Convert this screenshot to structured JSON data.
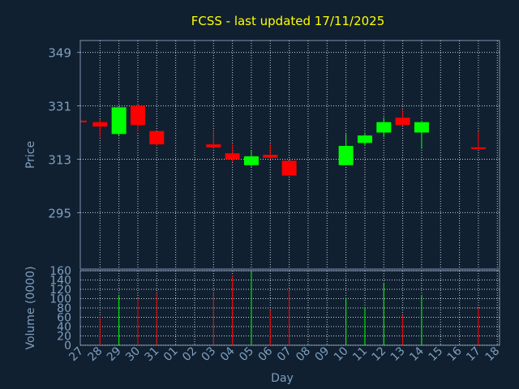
{
  "chart_data": {
    "type": "candlestick",
    "title": "FCSS - last updated 17/11/2025",
    "xlabel": "Day",
    "price_panel": {
      "ylabel": "Price",
      "ylim": [
        276,
        353
      ],
      "yticks": [
        295,
        313,
        331,
        349
      ]
    },
    "volume_panel": {
      "ylabel": "Volume (0000)",
      "ylim": [
        0,
        160
      ],
      "yticks": [
        0,
        20,
        40,
        60,
        80,
        100,
        120,
        140,
        160
      ]
    },
    "x_ticks": [
      "27",
      "28",
      "29",
      "30",
      "31",
      "01",
      "02",
      "03",
      "04",
      "05",
      "06",
      "07",
      "08",
      "09",
      "10",
      "11",
      "12",
      "13",
      "14",
      "15",
      "16",
      "17",
      "18"
    ],
    "candles": [
      {
        "x": "27",
        "open": 326.0,
        "high": 326.0,
        "low": 325.5,
        "close": 325.6,
        "volume": 0
      },
      {
        "x": "28",
        "open": 325.5,
        "high": 326.5,
        "low": 320.5,
        "close": 324.0,
        "volume": 60
      },
      {
        "x": "29",
        "open": 321.5,
        "high": 330.5,
        "low": 321.0,
        "close": 330.5,
        "volume": 108
      },
      {
        "x": "30",
        "open": 331.0,
        "high": 331.5,
        "low": 322.5,
        "close": 324.5,
        "volume": 100
      },
      {
        "x": "31",
        "open": 322.5,
        "high": 322.5,
        "low": 317.5,
        "close": 318.0,
        "volume": 110
      },
      {
        "x": "03",
        "open": 318.0,
        "high": 323.0,
        "low": 316.5,
        "close": 317.0,
        "volume": 112
      },
      {
        "x": "04",
        "open": 315.0,
        "high": 318.0,
        "low": 312.0,
        "close": 313.0,
        "volume": 150
      },
      {
        "x": "05",
        "open": 311.0,
        "high": 316.0,
        "low": 310.5,
        "close": 314.0,
        "volume": 160
      },
      {
        "x": "06",
        "open": 314.5,
        "high": 318.0,
        "low": 313.0,
        "close": 313.5,
        "volume": 75
      },
      {
        "x": "07",
        "open": 312.5,
        "high": 312.5,
        "low": 307.5,
        "close": 307.5,
        "volume": 118
      },
      {
        "x": "10",
        "open": 311.0,
        "high": 321.5,
        "low": 311.0,
        "close": 317.5,
        "volume": 102
      },
      {
        "x": "11",
        "open": 318.5,
        "high": 322.0,
        "low": 317.5,
        "close": 321.0,
        "volume": 82
      },
      {
        "x": "12",
        "open": 322.0,
        "high": 327.0,
        "low": 320.5,
        "close": 325.5,
        "volume": 132
      },
      {
        "x": "13",
        "open": 327.0,
        "high": 329.5,
        "low": 324.5,
        "close": 324.5,
        "volume": 65
      },
      {
        "x": "14",
        "open": 322.0,
        "high": 325.5,
        "low": 316.5,
        "close": 325.5,
        "volume": 108
      },
      {
        "x": "17",
        "open": 317.0,
        "high": 322.5,
        "low": 316.5,
        "close": 316.5,
        "volume": 80
      }
    ]
  },
  "colors": {
    "background": "#102030",
    "plot_border": "#8090b0",
    "grid": "#c8d0dc",
    "title": "#ffff00",
    "axis_text": "#7f9fbf",
    "up": "#00ff00",
    "down": "#ff0000"
  }
}
